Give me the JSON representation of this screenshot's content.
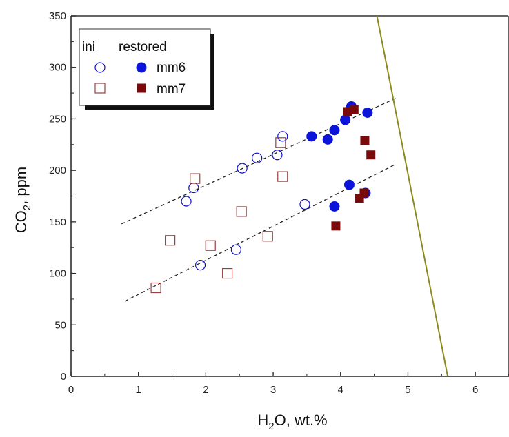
{
  "chart_data": {
    "type": "scatter",
    "xlabel": {
      "prefix": "H",
      "sub": "2",
      "suffix": "O, wt.%"
    },
    "ylabel": {
      "prefix": "CO",
      "sub": "2",
      "suffix": ", ppm"
    },
    "xlim": [
      0,
      6.5
    ],
    "ylim": [
      0,
      350
    ],
    "xticks": [
      0,
      1,
      2,
      3,
      4,
      5,
      6
    ],
    "yticks": [
      0,
      50,
      100,
      150,
      200,
      250,
      300,
      350
    ],
    "grid": false,
    "legend": {
      "placement": "top-left",
      "col_headers": [
        "ini",
        "restored"
      ],
      "rows": [
        "mm6",
        "mm7"
      ]
    },
    "colors": {
      "mm6": "#1010cc",
      "mm6_restored": "#0b14d8",
      "mm7": "#9b4040",
      "mm7_restored": "#7a0a0a",
      "trend": "#222222",
      "boundary": "#8c8a1c"
    },
    "series": [
      {
        "name": "mm6",
        "group": "ini",
        "marker": "circle-open",
        "points": [
          [
            1.71,
            170
          ],
          [
            1.82,
            183
          ],
          [
            1.92,
            108
          ],
          [
            2.45,
            123
          ],
          [
            2.54,
            202
          ],
          [
            2.76,
            212
          ],
          [
            3.06,
            215
          ],
          [
            3.14,
            233
          ],
          [
            3.47,
            167
          ]
        ]
      },
      {
        "name": "mm7",
        "group": "ini",
        "marker": "square-open",
        "points": [
          [
            1.26,
            86
          ],
          [
            1.47,
            132
          ],
          [
            1.84,
            192
          ],
          [
            2.07,
            127
          ],
          [
            2.32,
            100
          ],
          [
            2.53,
            160
          ],
          [
            2.92,
            136
          ],
          [
            3.11,
            227
          ],
          [
            3.14,
            194
          ]
        ]
      },
      {
        "name": "mm6",
        "group": "restored",
        "marker": "circle-filled",
        "points": [
          [
            3.57,
            233
          ],
          [
            3.81,
            230
          ],
          [
            3.91,
            165
          ],
          [
            3.91,
            239
          ],
          [
            4.07,
            249
          ],
          [
            4.13,
            186
          ],
          [
            4.16,
            262
          ],
          [
            4.37,
            178
          ],
          [
            4.4,
            256
          ]
        ]
      },
      {
        "name": "mm7",
        "group": "restored",
        "marker": "square-filled",
        "points": [
          [
            3.93,
            146
          ],
          [
            4.1,
            257
          ],
          [
            4.2,
            259
          ],
          [
            4.28,
            173
          ],
          [
            4.35,
            178
          ],
          [
            4.36,
            229
          ],
          [
            4.45,
            215
          ]
        ]
      }
    ],
    "trend_lines": [
      {
        "x": [
          0.75,
          4.82
        ],
        "y": [
          148,
          270
        ]
      },
      {
        "x": [
          0.8,
          4.82
        ],
        "y": [
          73,
          206
        ]
      }
    ],
    "boundary_line": {
      "x": [
        4.54,
        5.59
      ],
      "y": [
        350,
        0
      ]
    }
  }
}
